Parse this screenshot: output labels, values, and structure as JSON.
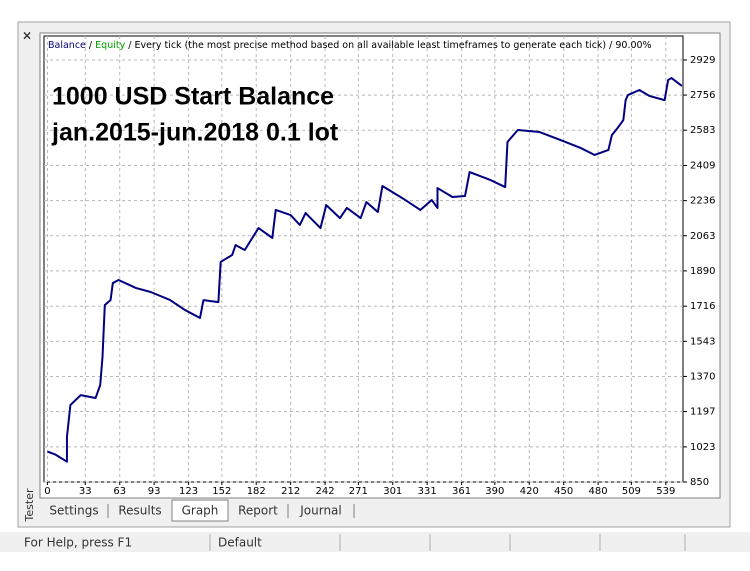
{
  "chart_data": {
    "type": "line",
    "header": {
      "balance_label": "Balance",
      "separator": "/",
      "equity_label": "Equity",
      "equity_color": "#00a000",
      "description": "/ Every tick (the most precise method based on all available least timeframes to generate each tick) / 90.00%"
    },
    "annotations": [
      "1000 USD Start Balance",
      "jan.2015-jun.2018  0.1 lot"
    ],
    "series": [
      {
        "name": "Balance",
        "color": "#000080",
        "x": [
          0,
          7,
          17,
          17,
          20,
          29,
          42,
          46,
          48,
          50,
          55,
          57,
          62,
          77,
          90,
          107,
          120,
          133,
          136,
          149,
          151,
          161,
          164,
          172,
          184,
          196,
          199,
          212,
          220,
          225,
          238,
          243,
          255,
          261,
          273,
          278,
          288,
          292,
          312,
          325,
          335,
          340,
          340,
          353,
          364,
          368,
          386,
          399,
          401,
          410,
          429,
          447,
          465,
          477,
          489,
          492,
          497,
          502,
          504,
          506,
          516,
          525,
          538,
          541,
          544,
          553
        ],
        "values": [
          1000,
          985,
          950,
          1072,
          1229,
          1278,
          1264,
          1328,
          1466,
          1722,
          1746,
          1830,
          1845,
          1806,
          1786,
          1746,
          1697,
          1658,
          1746,
          1736,
          1934,
          1968,
          2017,
          1993,
          2101,
          2052,
          2190,
          2165,
          2116,
          2175,
          2101,
          2214,
          2150,
          2200,
          2150,
          2229,
          2180,
          2308,
          2239,
          2190,
          2239,
          2200,
          2298,
          2254,
          2259,
          2377,
          2338,
          2303,
          2525,
          2584,
          2574,
          2535,
          2495,
          2461,
          2486,
          2559,
          2594,
          2633,
          2731,
          2756,
          2781,
          2751,
          2731,
          2830,
          2840,
          2801
        ]
      }
    ],
    "xlim": [
      -3,
      554
    ],
    "ylim": [
      850,
      3047
    ],
    "xticks": [
      0,
      33,
      63,
      93,
      123,
      152,
      182,
      212,
      242,
      271,
      301,
      331,
      361,
      390,
      420,
      450,
      480,
      509,
      539
    ],
    "yticks": [
      850,
      1023,
      1197,
      1370,
      1543,
      1716,
      1890,
      2063,
      2236,
      2409,
      2583,
      2756,
      2929
    ],
    "grid": true
  },
  "ui": {
    "close": "×",
    "side_label": "Tester",
    "tabs": [
      "Settings",
      "Results",
      "Graph",
      "Report",
      "Journal"
    ],
    "active_tab": 2,
    "status": [
      "For Help, press F1",
      "Default"
    ]
  }
}
